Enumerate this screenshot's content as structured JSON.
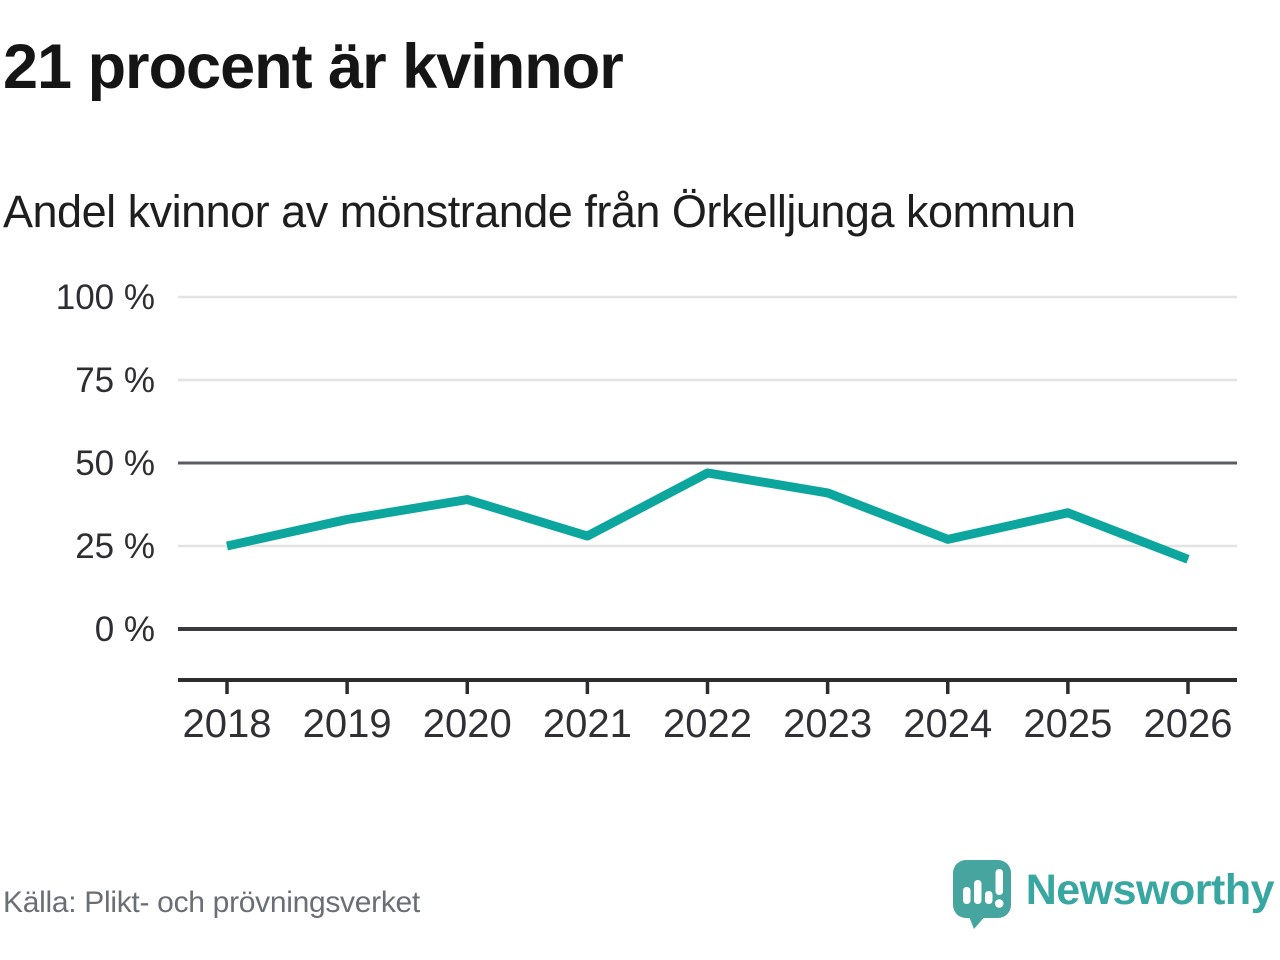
{
  "header": {
    "title": "21 procent är kvinnor",
    "subtitle": "Andel kvinnor av mönstrande från Örkelljunga kommun"
  },
  "chart_data": {
    "type": "line",
    "title": "21 procent är kvinnor",
    "subtitle": "Andel kvinnor av mönstrande från Örkelljunga kommun",
    "categories": [
      "2018",
      "2019",
      "2020",
      "2021",
      "2022",
      "2023",
      "2024",
      "2025",
      "2026"
    ],
    "series": [
      {
        "name": "Andel kvinnor av mönstrande",
        "values": [
          25,
          33,
          39,
          28,
          47,
          41,
          27,
          35,
          21
        ]
      }
    ],
    "unit": "%",
    "ylim": [
      0,
      100
    ],
    "yticks": [
      0,
      25,
      50,
      75,
      100
    ],
    "ytick_label_suffix": " %",
    "grid": true,
    "emphasized_gridlines": [
      50
    ],
    "zero_line_emphasized": true,
    "legend_position": "none",
    "line_color": "#0da69e"
  },
  "footer": {
    "source": "Källa: Plikt- och prövningsverket",
    "brand": "Newsworthy",
    "brand_color": "#38a7a1",
    "logo_color": "#46a59f"
  }
}
